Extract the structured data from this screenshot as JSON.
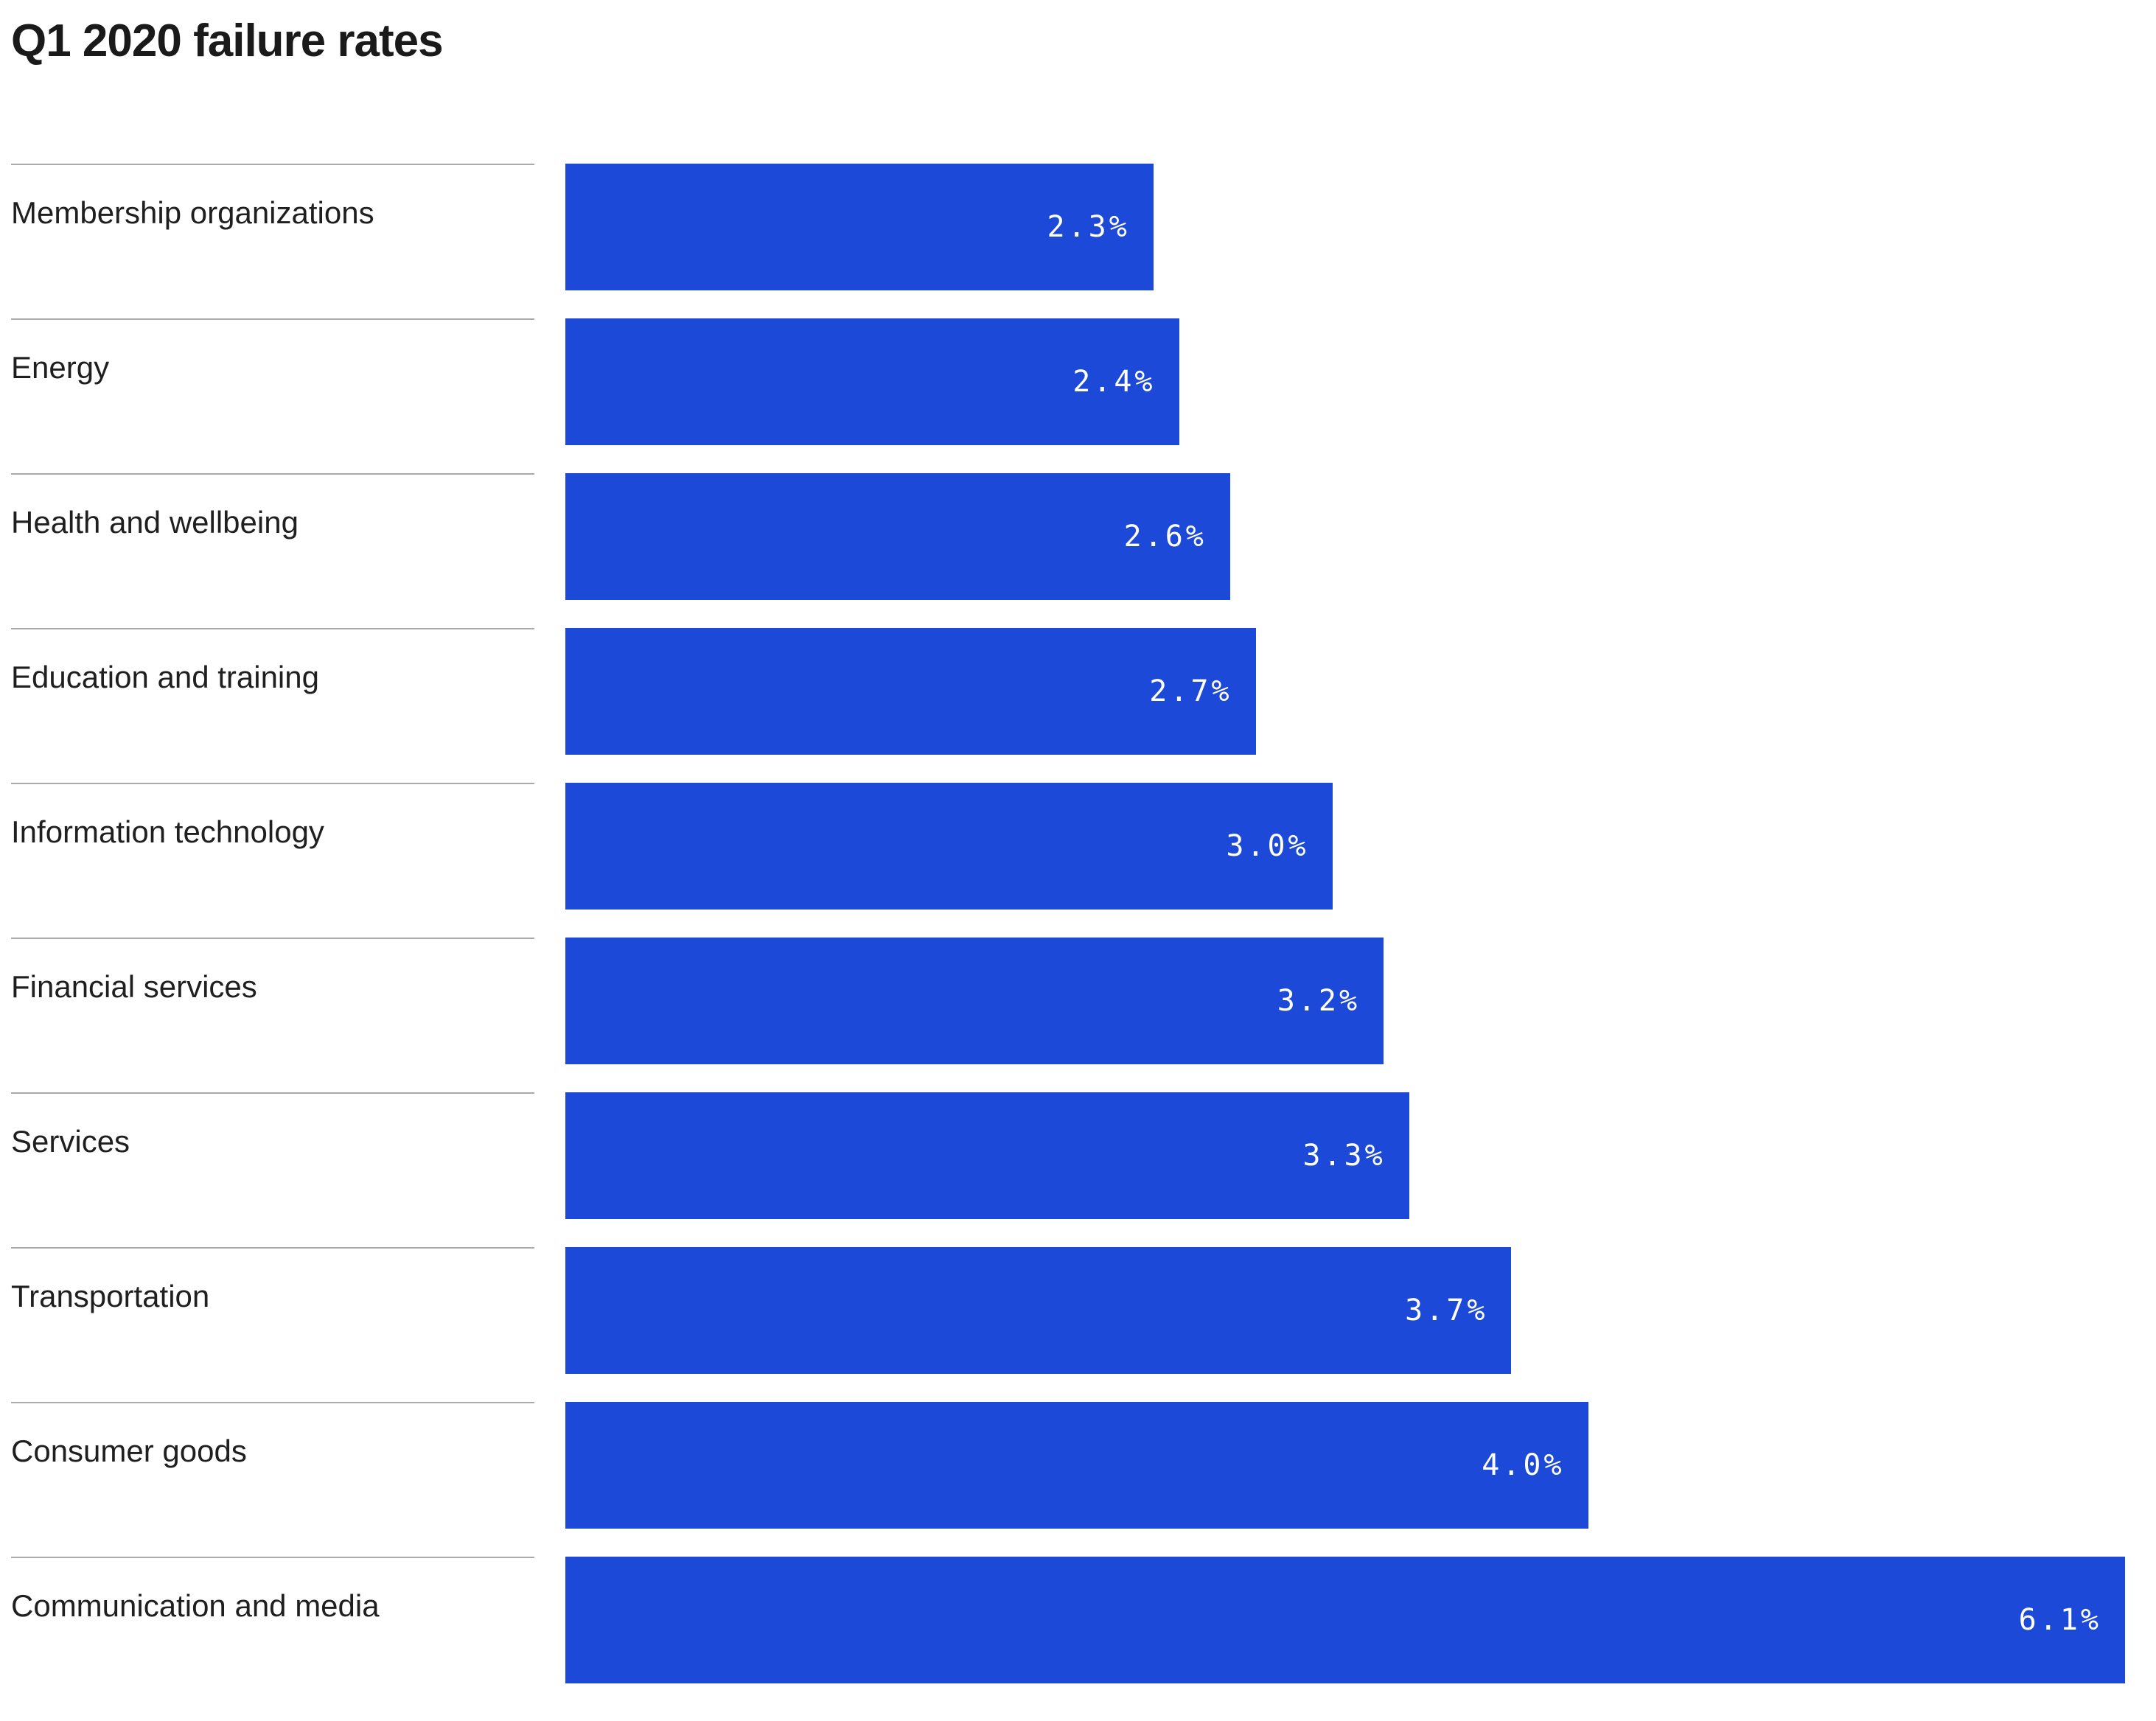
{
  "title": "Q1 2020 failure rates",
  "colors": {
    "bar": "#1d49d8",
    "title": "#1a1a1a",
    "category_label": "#1f1f1f",
    "value_label": "#ffffff",
    "separator": "#aaaaaa",
    "background": "#ffffff"
  },
  "chart_data": {
    "type": "bar",
    "orientation": "horizontal",
    "title": "Q1 2020 failure rates",
    "categories": [
      "Membership organizations",
      "Energy",
      "Health and wellbeing",
      "Education and training",
      "Information technology",
      "Financial services",
      "Services",
      "Transportation",
      "Consumer goods",
      "Communication and media"
    ],
    "values": [
      2.3,
      2.4,
      2.6,
      2.7,
      3.0,
      3.2,
      3.3,
      3.7,
      4.0,
      6.1
    ],
    "value_labels": [
      "2.3%",
      "2.4%",
      "2.6%",
      "2.7%",
      "3.0%",
      "3.2%",
      "3.3%",
      "3.7%",
      "4.0%",
      "6.1%"
    ],
    "xlim": [
      0,
      6.1
    ],
    "unit": "%",
    "grid": false,
    "legend": false,
    "value_labels_position": "inside-end"
  }
}
